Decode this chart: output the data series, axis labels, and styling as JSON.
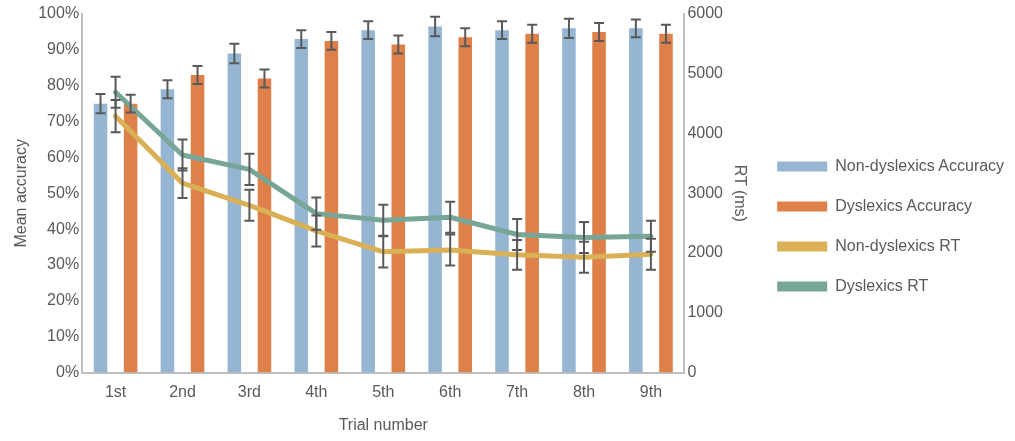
{
  "chart_data": {
    "type": "bar",
    "xlabel": "Trial number",
    "ylabel": "Mean accuracy",
    "y2label": "RT (ms)",
    "categories": [
      "1st",
      "2nd",
      "3rd",
      "4th",
      "5th",
      "6th",
      "7th",
      "8th",
      "9th"
    ],
    "series": [
      {
        "name": "Non-dyslexics Accuracy",
        "color": "#95b5d3",
        "values": [
          75,
          79,
          89,
          93,
          95.5,
          96.5,
          95.5,
          96,
          96
        ],
        "errors": [
          2.7,
          2.5,
          2.7,
          2.5,
          2.5,
          2.7,
          2.5,
          2.7,
          2.5
        ]
      },
      {
        "name": "Dyslexics Accuracy",
        "color": "#dd8049",
        "values": [
          75,
          83,
          82,
          92.5,
          91.5,
          93.5,
          94.5,
          95,
          94.5
        ],
        "errors": [
          2.5,
          2.5,
          2.5,
          2.5,
          2.5,
          2.5,
          2.5,
          2.5,
          2.5
        ]
      },
      {
        "name": "Non-dyslexics RT",
        "type": "line",
        "axis": "y2",
        "color": "#d9b056",
        "values": [
          4290,
          3170,
          2800,
          2370,
          2020,
          2050,
          1970,
          1930,
          1980
        ],
        "errors": [
          270,
          250,
          260,
          260,
          260,
          260,
          250,
          260,
          260
        ]
      },
      {
        "name": "Dyslexics RT",
        "type": "line",
        "axis": "y2",
        "color": "#77a597",
        "values": [
          4690,
          3640,
          3400,
          2660,
          2550,
          2600,
          2310,
          2260,
          2280
        ],
        "errors": [
          260,
          260,
          260,
          270,
          260,
          260,
          260,
          260,
          260
        ]
      }
    ],
    "ylim": [
      0,
      100
    ],
    "yticks": [
      {
        "value": 0,
        "label": "0%"
      },
      {
        "value": 10,
        "label": "10%"
      },
      {
        "value": 20,
        "label": "20%"
      },
      {
        "value": 30,
        "label": "30%"
      },
      {
        "value": 40,
        "label": "40%"
      },
      {
        "value": 50,
        "label": "50%"
      },
      {
        "value": 60,
        "label": "60%"
      },
      {
        "value": 70,
        "label": "70%"
      },
      {
        "value": 80,
        "label": "80%"
      },
      {
        "value": 90,
        "label": "90%"
      },
      {
        "value": 100,
        "label": "100%"
      }
    ],
    "y2lim": [
      0,
      6000
    ],
    "y2ticks": [
      0,
      1000,
      2000,
      3000,
      4000,
      5000,
      6000
    ],
    "grid": false,
    "legend": "right",
    "marker": "none",
    "line_style": "solid"
  }
}
